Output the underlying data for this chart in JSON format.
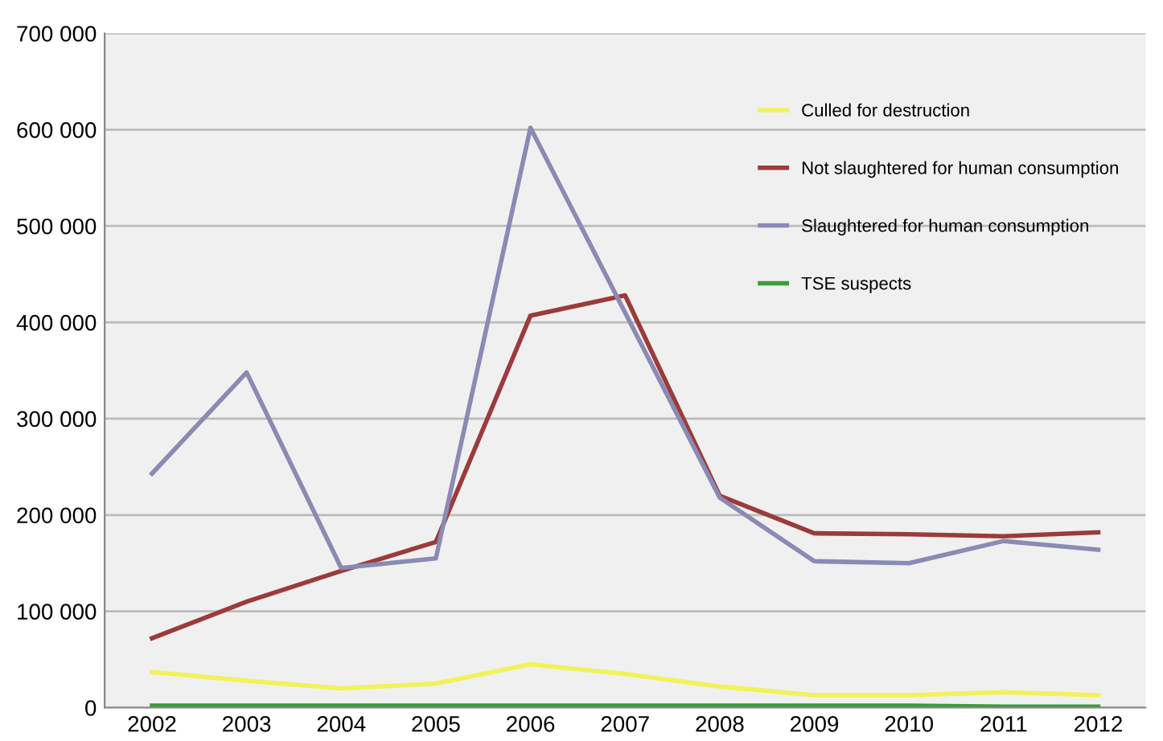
{
  "chart_data": {
    "type": "line",
    "categories": [
      "2002",
      "2003",
      "2004",
      "2005",
      "2006",
      "2007",
      "2008",
      "2009",
      "2010",
      "2011",
      "2012"
    ],
    "series": [
      {
        "name": "Culled for destruction",
        "color": "#f2f25a",
        "values": [
          37000,
          28000,
          20000,
          25000,
          45000,
          35000,
          22000,
          13000,
          13000,
          16000,
          13000
        ]
      },
      {
        "name": "Not slaughtered for human consumption",
        "color": "#9b3b3b",
        "values": [
          72000,
          110000,
          142000,
          172000,
          407000,
          428000,
          220000,
          181000,
          180000,
          178000,
          182000
        ]
      },
      {
        "name": "Slaughtered for human consumption",
        "color": "#8a8ab4",
        "values": [
          243000,
          348000,
          145000,
          155000,
          602000,
          410000,
          218000,
          152000,
          150000,
          173000,
          164000
        ]
      },
      {
        "name": "TSE suspects",
        "color": "#3c9a3c",
        "values": [
          2000,
          2000,
          2000,
          2000,
          2000,
          2000,
          2000,
          2000,
          2000,
          1000,
          1000
        ]
      }
    ],
    "ylim": [
      0,
      700000
    ],
    "yticks": [
      0,
      {
        "value": 100000,
        "label": "100 000"
      },
      {
        "value": 200000,
        "label": "200 000"
      },
      {
        "value": 300000,
        "label": "300 000"
      },
      {
        "value": 400000,
        "label": "400 000"
      },
      {
        "value": 500000,
        "label": "500 000"
      },
      {
        "value": 600000,
        "label": "600 000"
      },
      {
        "value": 700000,
        "label": "700 000"
      }
    ],
    "grid": "y",
    "legend": "top right",
    "marker": "none",
    "line_style": "solid"
  }
}
